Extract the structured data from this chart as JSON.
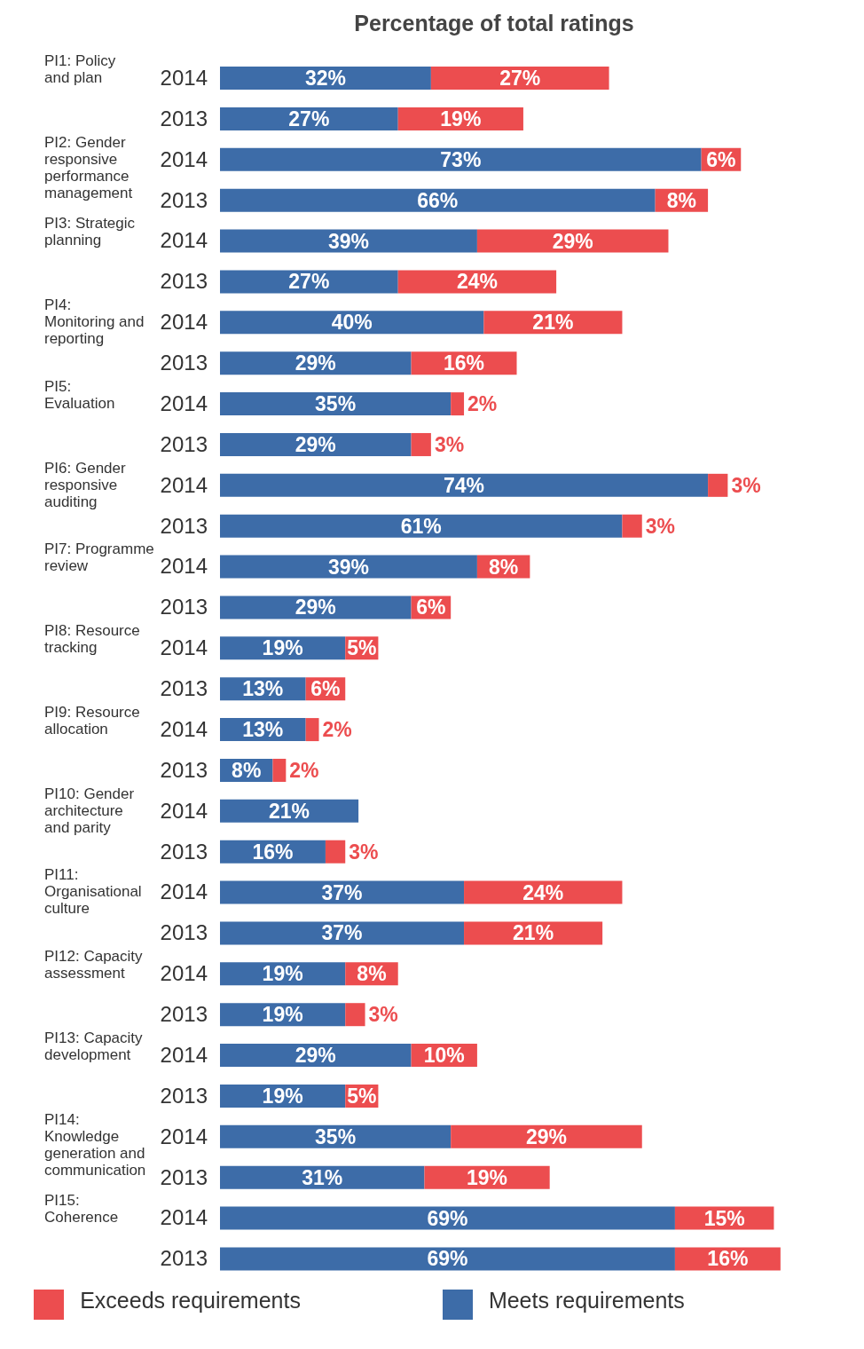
{
  "chart_data": {
    "type": "bar",
    "orientation": "horizontal",
    "stacked": true,
    "title": "Percentage of total ratings",
    "categories": [
      "2014",
      "2013",
      "2014",
      "2013",
      "2014",
      "2013",
      "2014",
      "2013",
      "2014",
      "2013",
      "2014",
      "2013",
      "2014",
      "2013",
      "2014",
      "2013",
      "2014",
      "2013",
      "2014",
      "2013",
      "2014",
      "2013",
      "2014",
      "2013",
      "2014",
      "2013",
      "2014",
      "2013",
      "2014",
      "2013"
    ],
    "annotations": [
      "PI1: Policy and plan",
      "PI2: Gender responsive performance management",
      "PI3: Strategic planning",
      "PI4: Monitoring and reporting",
      "PI5: Evaluation",
      "PI6: Gender responsive auditing",
      "PI7: Programme review",
      "PI8: Resource tracking",
      "PI9: Resource allocation",
      "PI10: Gender architecture and parity",
      "PI11: Organisational culture",
      "PI12: Capacity assessment",
      "PI13: Capacity development",
      "PI14: Knowledge generation and communication",
      "PI15: Coherence"
    ],
    "series": [
      {
        "name": "Meets requirements",
        "color": "#3d6ca8",
        "values": [
          32,
          27,
          73,
          66,
          39,
          27,
          40,
          29,
          35,
          29,
          74,
          61,
          39,
          29,
          19,
          13,
          13,
          8,
          21,
          16,
          37,
          37,
          19,
          19,
          29,
          19,
          35,
          31,
          69,
          69
        ],
        "value_labels": [
          "32%",
          "27%",
          "73%",
          "66%",
          "39%",
          "27%",
          "40%",
          "29%",
          "35%",
          "29%",
          "74%",
          "61%",
          "39%",
          "29%",
          "19%",
          "13%",
          "13%",
          "8%",
          "21%",
          "16%",
          "37%",
          "37%",
          "19%",
          "19%",
          "29%",
          "19%",
          "35%",
          "31%",
          "69%",
          "69%"
        ]
      },
      {
        "name": "Exceeds requirements",
        "color": "#ec4d4f",
        "values": [
          27,
          19,
          6,
          8,
          29,
          24,
          21,
          16,
          2,
          3,
          3,
          3,
          8,
          6,
          5,
          6,
          2,
          2,
          null,
          3,
          24,
          21,
          8,
          3,
          10,
          5,
          29,
          19,
          15,
          16
        ],
        "value_labels": [
          "27%",
          "19%",
          "6%",
          "8%",
          "29%",
          "24%",
          "21%",
          "16%",
          "2%",
          "3%",
          "3%",
          "3%",
          "8%",
          "6%",
          "5%",
          "6%",
          "2%",
          "2%",
          null,
          "3%",
          "24%",
          "21%",
          "8%",
          "3%",
          "10%",
          "5%",
          "29%",
          "19%",
          "15%",
          "16%"
        ]
      }
    ],
    "legend": "bottom"
  }
}
